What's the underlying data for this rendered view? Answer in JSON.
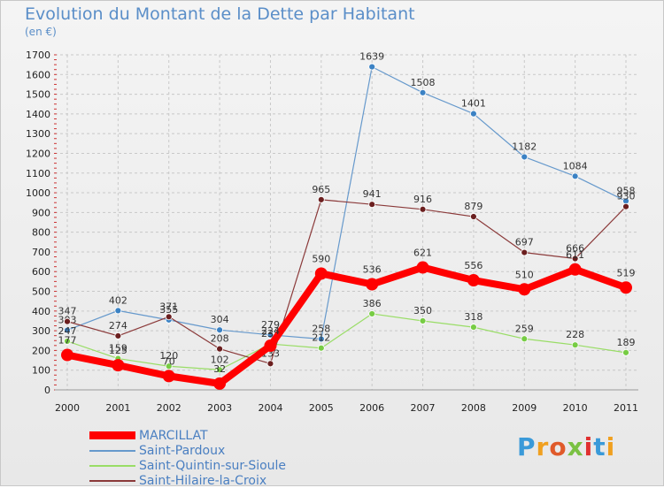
{
  "title": "Evolution du Montant de la Dette par Habitant",
  "unit": "(en €)",
  "logo": "Proxiti",
  "chart_data": {
    "type": "line",
    "title": "Evolution du Montant de la Dette par Habitant",
    "ylabel": "(en €)",
    "x": [
      "2000",
      "2001",
      "2002",
      "2003",
      "2004",
      "2005",
      "2006",
      "2007",
      "2008",
      "2009",
      "2010",
      "2011"
    ],
    "ylim": [
      0,
      1700
    ],
    "yticks": [
      0,
      100,
      200,
      300,
      400,
      500,
      600,
      700,
      800,
      900,
      1000,
      1100,
      1200,
      1300,
      1400,
      1500,
      1600,
      1700
    ],
    "grid": true,
    "legend_position": "bottom-left",
    "series": [
      {
        "name": "Saint-Pardoux",
        "color": "#6699cc",
        "marker": "#3b82c4",
        "width": 1.2,
        "values": [
          303,
          402,
          355,
          304,
          279,
          258,
          1639,
          1508,
          1401,
          1182,
          1084,
          958
        ]
      },
      {
        "name": "Saint-Quintin-sur-Sioule",
        "color": "#99dd66",
        "marker": "#77cc44",
        "width": 1.2,
        "values": [
          247,
          159,
          120,
          102,
          233,
          212,
          386,
          350,
          318,
          259,
          228,
          189
        ]
      },
      {
        "name": "Saint-Hilaire-la-Croix",
        "color": "#8b3a3a",
        "marker": "#6b1f1f",
        "width": 1.2,
        "values": [
          347,
          274,
          371,
          208,
          133,
          965,
          941,
          916,
          879,
          697,
          666,
          930
        ]
      },
      {
        "name": "MARCILLAT",
        "color": "#ff0000",
        "marker": "#ff0000",
        "width": 8,
        "values": [
          177,
          125,
          70,
          32,
          224,
          590,
          536,
          621,
          556,
          510,
          611,
          519
        ]
      }
    ],
    "legend_order": [
      "MARCILLAT",
      "Saint-Pardoux",
      "Saint-Quintin-sur-Sioule",
      "Saint-Hilaire-la-Croix"
    ]
  }
}
